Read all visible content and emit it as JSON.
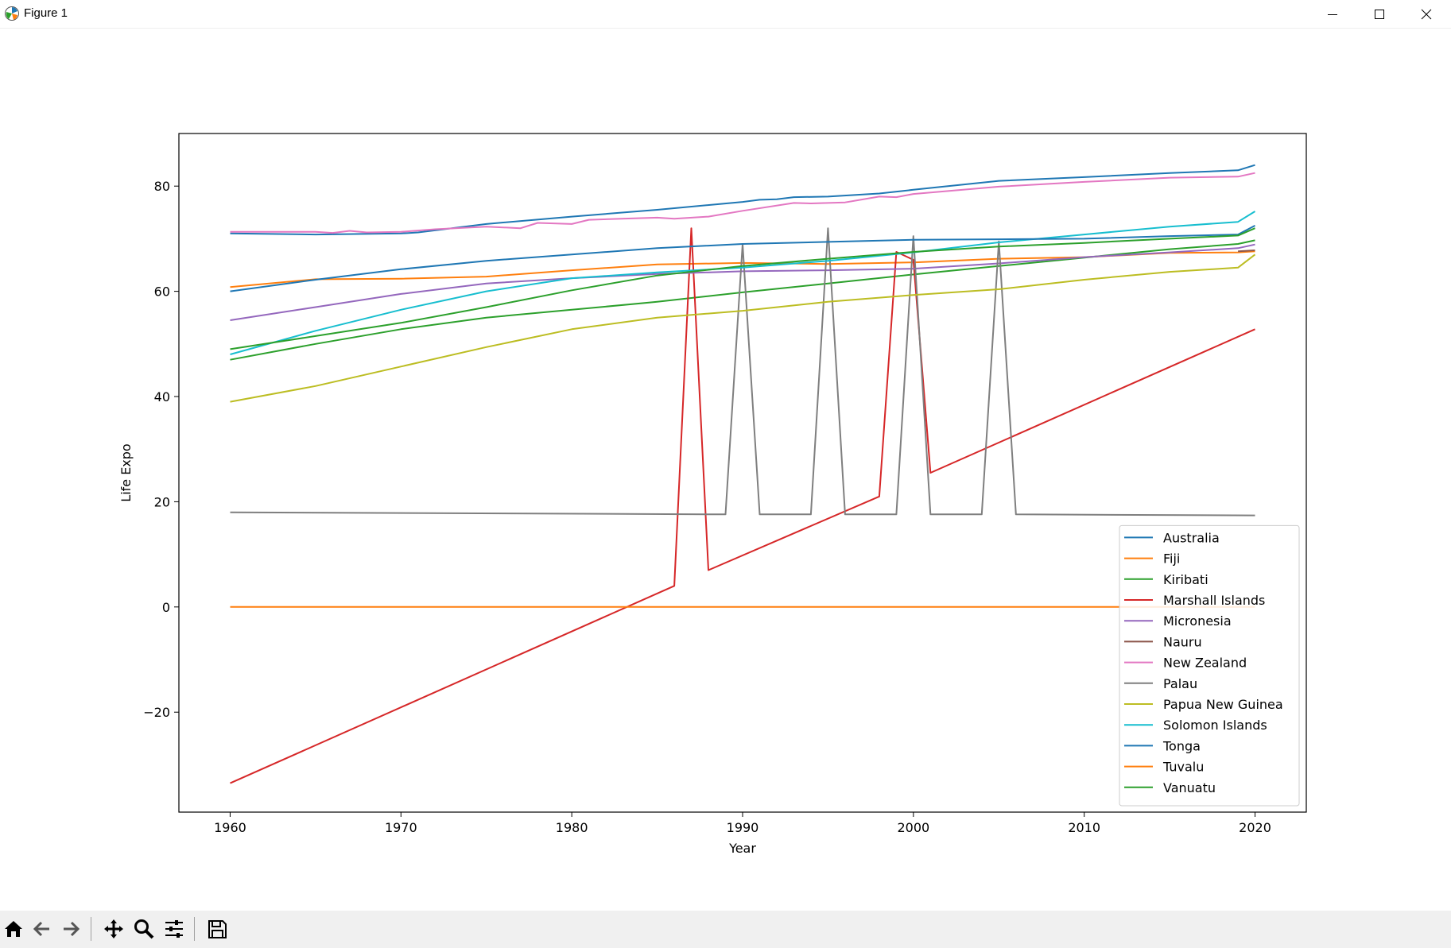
{
  "window": {
    "title": "Figure 1"
  },
  "toolbar": {
    "icons": [
      "home-icon",
      "back-icon",
      "forward-icon",
      "pan-icon",
      "zoom-icon",
      "configure-subplots-icon",
      "save-icon"
    ]
  },
  "chart_data": {
    "type": "line",
    "title": "",
    "xlabel": "Year",
    "ylabel": "Life Expo",
    "xlim": [
      1957,
      2023
    ],
    "ylim": [
      -39,
      90
    ],
    "xticks": [
      1960,
      1970,
      1980,
      1990,
      2000,
      2010,
      2020
    ],
    "yticks": [
      -20,
      0,
      20,
      40,
      60,
      80
    ],
    "grid": false,
    "legend_position": "lower right",
    "series": [
      {
        "name": "Australia",
        "color": "#1f77b4",
        "x": [
          1960,
          1965,
          1970,
          1971,
          1975,
          1980,
          1985,
          1990,
          1991,
          1992,
          1993,
          1995,
          1998,
          2000,
          2005,
          2010,
          2015,
          2019,
          2020
        ],
        "y": [
          71.0,
          70.8,
          71.0,
          71.2,
          72.8,
          74.2,
          75.5,
          77.0,
          77.4,
          77.5,
          77.9,
          78.0,
          78.6,
          79.3,
          81.0,
          81.7,
          82.5,
          83.0,
          84.0
        ]
      },
      {
        "name": "Fiji",
        "color": "#ff7f0e",
        "x": [
          1960,
          1965,
          1970,
          1975,
          1980,
          1985,
          1990,
          1995,
          2000,
          2005,
          2010,
          2015,
          2019,
          2020
        ],
        "y": [
          60.8,
          62.3,
          62.4,
          62.8,
          64.0,
          65.1,
          65.4,
          65.2,
          65.5,
          66.2,
          66.5,
          67.3,
          67.4,
          67.6
        ]
      },
      {
        "name": "Kiribati",
        "color": "#2ca02c",
        "x": [
          1960,
          1965,
          1970,
          1975,
          1980,
          1985,
          1990,
          1995,
          2000,
          2005,
          2010,
          2015,
          2019,
          2020
        ],
        "y": [
          47.0,
          50.0,
          52.8,
          55.0,
          56.5,
          58.0,
          59.8,
          61.5,
          63.2,
          64.8,
          66.4,
          68.0,
          69.0,
          69.7
        ]
      },
      {
        "name": "Marshall Islands",
        "color": "#d62728",
        "x": [
          1960,
          1986,
          1987,
          1988,
          1998,
          1999,
          2000,
          2001,
          2020
        ],
        "y": [
          -33.5,
          4.0,
          72.0,
          7.0,
          21.0,
          67.5,
          66.0,
          25.5,
          52.8
        ]
      },
      {
        "name": "Micronesia",
        "color": "#9467bd",
        "x": [
          1960,
          1965,
          1970,
          1975,
          1980,
          1985,
          1990,
          1995,
          2000,
          2005,
          2010,
          2015,
          2019,
          2020
        ],
        "y": [
          54.5,
          57.0,
          59.5,
          61.5,
          62.5,
          63.3,
          63.8,
          64.0,
          64.3,
          65.3,
          66.5,
          67.4,
          68.2,
          68.9
        ]
      },
      {
        "name": "Nauru",
        "color": "#8c564b",
        "x": [
          2019,
          2020
        ],
        "y": [
          67.6,
          67.8
        ]
      },
      {
        "name": "New Zealand",
        "color": "#e377c2",
        "x": [
          1960,
          1965,
          1966,
          1967,
          1968,
          1970,
          1972,
          1975,
          1977,
          1978,
          1980,
          1981,
          1985,
          1986,
          1988,
          1990,
          1993,
          1994,
          1996,
          1998,
          1999,
          2000,
          2005,
          2010,
          2015,
          2019,
          2020
        ],
        "y": [
          71.3,
          71.3,
          71.1,
          71.5,
          71.2,
          71.3,
          71.8,
          72.3,
          72.0,
          73.0,
          72.8,
          73.6,
          74.0,
          73.8,
          74.2,
          75.3,
          76.8,
          76.7,
          76.9,
          78.0,
          77.9,
          78.5,
          79.9,
          80.8,
          81.6,
          81.8,
          82.5
        ]
      },
      {
        "name": "Palau",
        "color": "#7f7f7f",
        "x": [
          1960,
          1989,
          1990,
          1991,
          1994,
          1995,
          1996,
          1999,
          2000,
          2001,
          2004,
          2005,
          2006,
          2020
        ],
        "y": [
          18.0,
          17.6,
          69.0,
          17.6,
          17.6,
          72.0,
          17.6,
          17.6,
          70.5,
          17.6,
          17.6,
          69.5,
          17.6,
          17.4
        ]
      },
      {
        "name": "Papua New Guinea",
        "color": "#bcbd22",
        "x": [
          1960,
          1965,
          1970,
          1975,
          1980,
          1985,
          1990,
          1995,
          2000,
          2005,
          2010,
          2015,
          2019,
          2020
        ],
        "y": [
          39.0,
          42.0,
          45.7,
          49.4,
          52.8,
          55.0,
          56.3,
          58.0,
          59.3,
          60.4,
          62.2,
          63.7,
          64.5,
          67.0
        ]
      },
      {
        "name": "Solomon Islands",
        "color": "#17becf",
        "x": [
          1960,
          1965,
          1970,
          1975,
          1980,
          1985,
          1990,
          1995,
          2000,
          2005,
          2010,
          2015,
          2019,
          2020
        ],
        "y": [
          48.0,
          52.5,
          56.5,
          60.0,
          62.5,
          63.6,
          64.5,
          65.8,
          67.4,
          69.3,
          70.8,
          72.3,
          73.2,
          75.2
        ]
      },
      {
        "name": "Tonga",
        "color": "#1f77b4",
        "x": [
          1960,
          1965,
          1970,
          1975,
          1980,
          1985,
          1990,
          1995,
          2000,
          2005,
          2010,
          2015,
          2019,
          2020
        ],
        "y": [
          60.0,
          62.2,
          64.2,
          65.8,
          67.0,
          68.2,
          69.0,
          69.4,
          69.8,
          69.9,
          70.0,
          70.5,
          70.8,
          72.5
        ]
      },
      {
        "name": "Tuvalu",
        "color": "#ff7f0e",
        "x": [
          1960,
          1970,
          1980,
          1990,
          2000,
          2010,
          2020
        ],
        "y": [
          0,
          0,
          0,
          0,
          0,
          0,
          0
        ]
      },
      {
        "name": "Vanuatu",
        "color": "#2ca02c",
        "x": [
          1960,
          1965,
          1970,
          1975,
          1980,
          1985,
          1990,
          1995,
          2000,
          2005,
          2010,
          2015,
          2019,
          2020
        ],
        "y": [
          49.0,
          51.5,
          54.0,
          57.0,
          60.2,
          63.0,
          64.8,
          66.2,
          67.5,
          68.5,
          69.2,
          70.0,
          70.6,
          72.0
        ]
      }
    ]
  }
}
